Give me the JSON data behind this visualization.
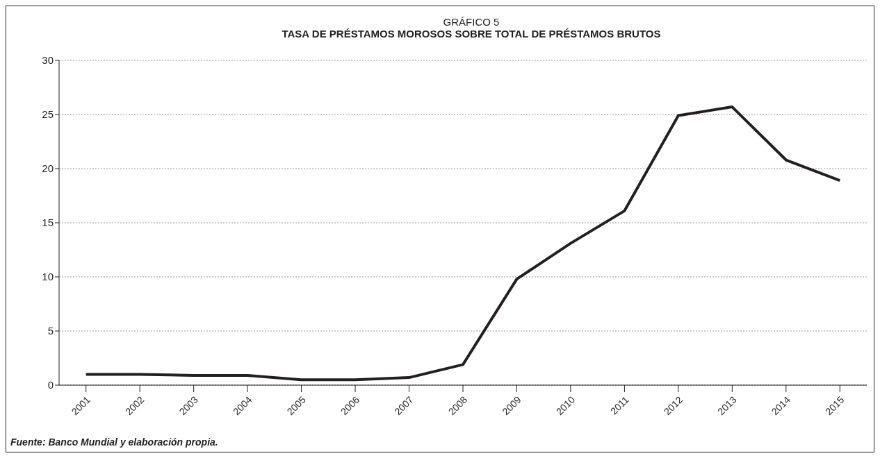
{
  "chart_data": {
    "type": "line",
    "title": "GRÁFICO 5",
    "subtitle": "TASA DE PRÉSTAMOS MOROSOS  SOBRE TOTAL DE PRÉSTAMOS BRUTOS",
    "categories": [
      "2001",
      "2002",
      "2003",
      "2004",
      "2005",
      "2006",
      "2007",
      "2008",
      "2009",
      "2010",
      "2011",
      "2012",
      "2013",
      "2014",
      "2015"
    ],
    "series": [
      {
        "color": "#231f20",
        "values": [
          1.0,
          1.0,
          0.9,
          0.9,
          0.5,
          0.5,
          0.7,
          1.9,
          9.8,
          13.1,
          16.1,
          24.9,
          25.7,
          20.8,
          18.9
        ]
      }
    ],
    "ylim": [
      0,
      30
    ],
    "yticks": [
      0,
      5,
      10,
      15,
      20,
      25,
      30
    ],
    "grid": "y",
    "marker": "none",
    "line_style": "solid",
    "annotations": [
      "Fuente: Banco Mundial y elaboración propia."
    ]
  }
}
